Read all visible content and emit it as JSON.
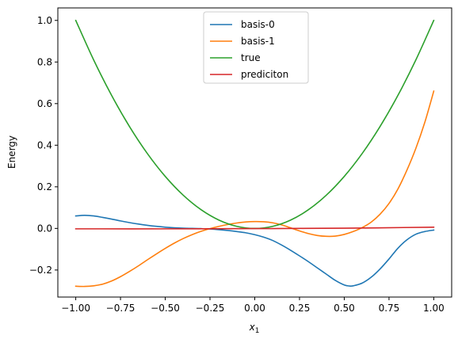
{
  "chart_data": {
    "type": "line",
    "title": "",
    "xlabel": "x",
    "xlabel_sub": "1",
    "ylabel": "Energy",
    "xlim": [
      -1.1,
      1.1
    ],
    "ylim": [
      -0.33,
      1.06
    ],
    "xticks": [
      -1.0,
      -0.75,
      -0.5,
      -0.25,
      0.0,
      0.25,
      0.5,
      0.75,
      1.0
    ],
    "xtick_labels": [
      "−1.00",
      "−0.75",
      "−0.50",
      "−0.25",
      "0.00",
      "0.25",
      "0.50",
      "0.75",
      "1.00"
    ],
    "yticks": [
      -0.2,
      0.0,
      0.2,
      0.4,
      0.6,
      0.8,
      1.0
    ],
    "ytick_labels": [
      "−0.2",
      "0.0",
      "0.2",
      "0.4",
      "0.6",
      "0.8",
      "1.0"
    ],
    "grid": false,
    "legend_position": "top-center",
    "series": [
      {
        "name": "basis-0",
        "color": "#1f77b4",
        "x": [
          -1.0,
          -0.95,
          -0.9,
          -0.85,
          -0.8,
          -0.75,
          -0.7,
          -0.65,
          -0.6,
          -0.55,
          -0.5,
          -0.45,
          -0.4,
          -0.35,
          -0.3,
          -0.25,
          -0.2,
          -0.15,
          -0.1,
          -0.05,
          0.0,
          0.05,
          0.1,
          0.15,
          0.2,
          0.25,
          0.3,
          0.35,
          0.4,
          0.45,
          0.5,
          0.53,
          0.55,
          0.6,
          0.65,
          0.7,
          0.75,
          0.8,
          0.85,
          0.9,
          0.95,
          1.0
        ],
        "y": [
          0.06,
          0.063,
          0.06,
          0.053,
          0.045,
          0.036,
          0.028,
          0.021,
          0.015,
          0.01,
          0.006,
          0.003,
          0.001,
          0.0,
          -0.001,
          -0.003,
          -0.006,
          -0.01,
          -0.015,
          -0.021,
          -0.03,
          -0.042,
          -0.058,
          -0.08,
          -0.105,
          -0.132,
          -0.16,
          -0.19,
          -0.22,
          -0.25,
          -0.272,
          -0.277,
          -0.276,
          -0.263,
          -0.235,
          -0.195,
          -0.147,
          -0.095,
          -0.055,
          -0.028,
          -0.015,
          -0.008
        ]
      },
      {
        "name": "basis-1",
        "color": "#ff7f0e",
        "x": [
          -1.0,
          -0.95,
          -0.9,
          -0.85,
          -0.8,
          -0.75,
          -0.7,
          -0.65,
          -0.6,
          -0.55,
          -0.5,
          -0.45,
          -0.4,
          -0.35,
          -0.3,
          -0.25,
          -0.2,
          -0.15,
          -0.1,
          -0.05,
          0.0,
          0.05,
          0.1,
          0.15,
          0.2,
          0.25,
          0.3,
          0.35,
          0.4,
          0.45,
          0.5,
          0.55,
          0.6,
          0.65,
          0.7,
          0.75,
          0.8,
          0.85,
          0.9,
          0.95,
          1.0
        ],
        "y": [
          -0.278,
          -0.279,
          -0.276,
          -0.268,
          -0.253,
          -0.232,
          -0.207,
          -0.18,
          -0.151,
          -0.123,
          -0.096,
          -0.071,
          -0.049,
          -0.03,
          -0.014,
          -0.001,
          0.01,
          0.019,
          0.026,
          0.031,
          0.033,
          0.032,
          0.027,
          0.017,
          0.003,
          -0.012,
          -0.025,
          -0.034,
          -0.038,
          -0.037,
          -0.029,
          -0.015,
          0.004,
          0.03,
          0.068,
          0.12,
          0.19,
          0.28,
          0.385,
          0.51,
          0.66
        ]
      },
      {
        "name": "true",
        "color": "#2ca02c",
        "x": [
          -1.0,
          -0.9,
          -0.8,
          -0.7,
          -0.6,
          -0.5,
          -0.4,
          -0.3,
          -0.2,
          -0.1,
          0.0,
          0.1,
          0.2,
          0.3,
          0.4,
          0.5,
          0.6,
          0.7,
          0.8,
          0.9,
          1.0
        ],
        "y": [
          1.0,
          0.81,
          0.64,
          0.49,
          0.36,
          0.25,
          0.16,
          0.09,
          0.04,
          0.01,
          0.0,
          0.01,
          0.04,
          0.09,
          0.16,
          0.25,
          0.36,
          0.49,
          0.64,
          0.81,
          1.0
        ]
      },
      {
        "name": "prediciton",
        "color": "#d62728",
        "x": [
          -1.0,
          -0.5,
          0.0,
          0.5,
          1.0
        ],
        "y": [
          -0.002,
          -0.002,
          -0.001,
          0.001,
          0.006
        ]
      }
    ]
  }
}
